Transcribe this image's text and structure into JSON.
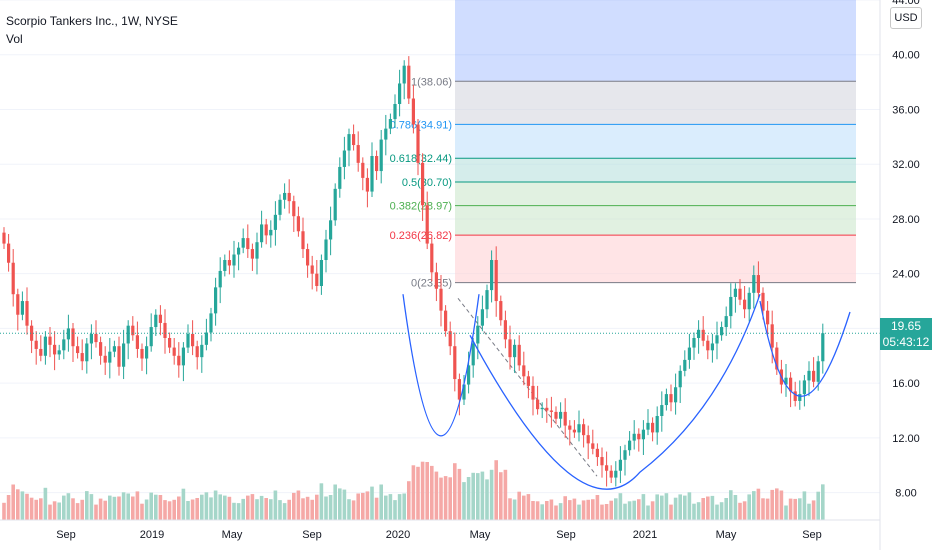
{
  "header": {
    "symbol_line": "Scorpio Tankers Inc., 1W, NYSE",
    "volume_label": "Vol"
  },
  "axis": {
    "currency": "USD",
    "price_ticks": [
      "44.00",
      "40.00",
      "36.00",
      "32.00",
      "28.00",
      "24.00",
      "20.00",
      "16.00",
      "12.00",
      "8.00"
    ],
    "time_ticks": [
      "Sep",
      "2019",
      "May",
      "Sep",
      "2020",
      "May",
      "Sep",
      "2021",
      "May",
      "Sep"
    ]
  },
  "last_price": {
    "value": "19.65",
    "countdown": "05:43:12"
  },
  "colors": {
    "up": "#26a69a",
    "down": "#ef5350",
    "vol_up": "#a5d6c9",
    "vol_down": "#f5a8a6",
    "pattern": "#2962ff",
    "fib_1": "#787b86",
    "fib_0786": "#2196f3",
    "fib_0618": "#089981",
    "fib_05": "#089981",
    "fib_0382": "#4caf50",
    "fib_0236": "#f23645",
    "fib_0": "#787b86"
  },
  "chart_data": {
    "type": "candlestick",
    "ylim": [
      6,
      44
    ],
    "fibonacci": {
      "levels": [
        {
          "ratio": "1",
          "price": 38.06,
          "label": "1(38.06)"
        },
        {
          "ratio": "0.786",
          "price": 34.91,
          "label": "0.786(34.91)"
        },
        {
          "ratio": "0.618",
          "price": 32.44,
          "label": "0.618(32.44)"
        },
        {
          "ratio": "0.5",
          "price": 30.7,
          "label": "0.5(30.70)"
        },
        {
          "ratio": "0.382",
          "price": 28.97,
          "label": "0.382(28.97)"
        },
        {
          "ratio": "0.236",
          "price": 26.82,
          "label": "0.236(26.82)"
        },
        {
          "ratio": "0",
          "price": 23.35,
          "label": "0(23.35)"
        }
      ]
    },
    "last_close": 19.65,
    "closes": [
      26.2,
      24.8,
      22.5,
      21.0,
      22.0,
      20.2,
      19.1,
      18.5,
      18.0,
      19.4,
      18.8,
      18.1,
      18.4,
      19.2,
      20.0,
      18.7,
      18.2,
      17.6,
      18.9,
      19.6,
      19.0,
      18.0,
      17.5,
      18.3,
      18.7,
      17.2,
      18.9,
      20.2,
      19.5,
      18.5,
      17.8,
      18.7,
      20.1,
      21.0,
      20.4,
      19.3,
      18.6,
      18.0,
      17.3,
      18.6,
      19.6,
      18.7,
      17.9,
      18.8,
      19.7,
      21.1,
      23.0,
      24.2,
      25.0,
      24.6,
      25.4,
      25.9,
      26.6,
      25.8,
      25.1,
      26.3,
      27.6,
      26.8,
      27.2,
      28.3,
      29.4,
      29.9,
      29.3,
      28.2,
      27.1,
      25.8,
      24.6,
      24.0,
      23.1,
      25.0,
      26.5,
      27.9,
      30.2,
      31.8,
      33.0,
      34.2,
      33.4,
      32.1,
      31.0,
      30.0,
      32.6,
      31.5,
      33.8,
      34.6,
      35.3,
      36.4,
      37.9,
      39.2,
      36.8,
      34.9,
      32.1,
      29.0,
      26.2,
      24.1,
      22.9,
      21.3,
      19.8,
      18.7,
      16.3,
      14.8,
      15.9,
      17.3,
      18.9,
      20.2,
      21.4,
      22.8,
      25.0,
      22.0,
      20.6,
      19.2,
      17.9,
      18.8,
      17.3,
      16.5,
      15.8,
      14.8,
      14.1,
      14.2,
      14.0,
      13.9,
      13.4,
      13.9,
      12.9,
      12.6,
      12.4,
      13.0,
      12.2,
      11.6,
      11.2,
      10.6,
      10.0,
      9.6,
      9.1,
      9.6,
      10.4,
      11.1,
      11.8,
      12.3,
      11.9,
      12.6,
      13.1,
      12.4,
      13.6,
      14.4,
      15.2,
      14.6,
      15.7,
      16.9,
      17.7,
      18.6,
      19.3,
      19.9,
      19.1,
      18.4,
      18.9,
      19.5,
      20.1,
      20.9,
      22.3,
      22.9,
      22.1,
      21.4,
      22.6,
      23.9,
      22.6,
      21.3,
      20.3,
      18.6,
      17.0,
      15.9,
      16.4,
      15.4,
      14.7,
      15.2,
      16.2,
      16.9,
      16.1,
      17.6,
      19.65
    ]
  }
}
